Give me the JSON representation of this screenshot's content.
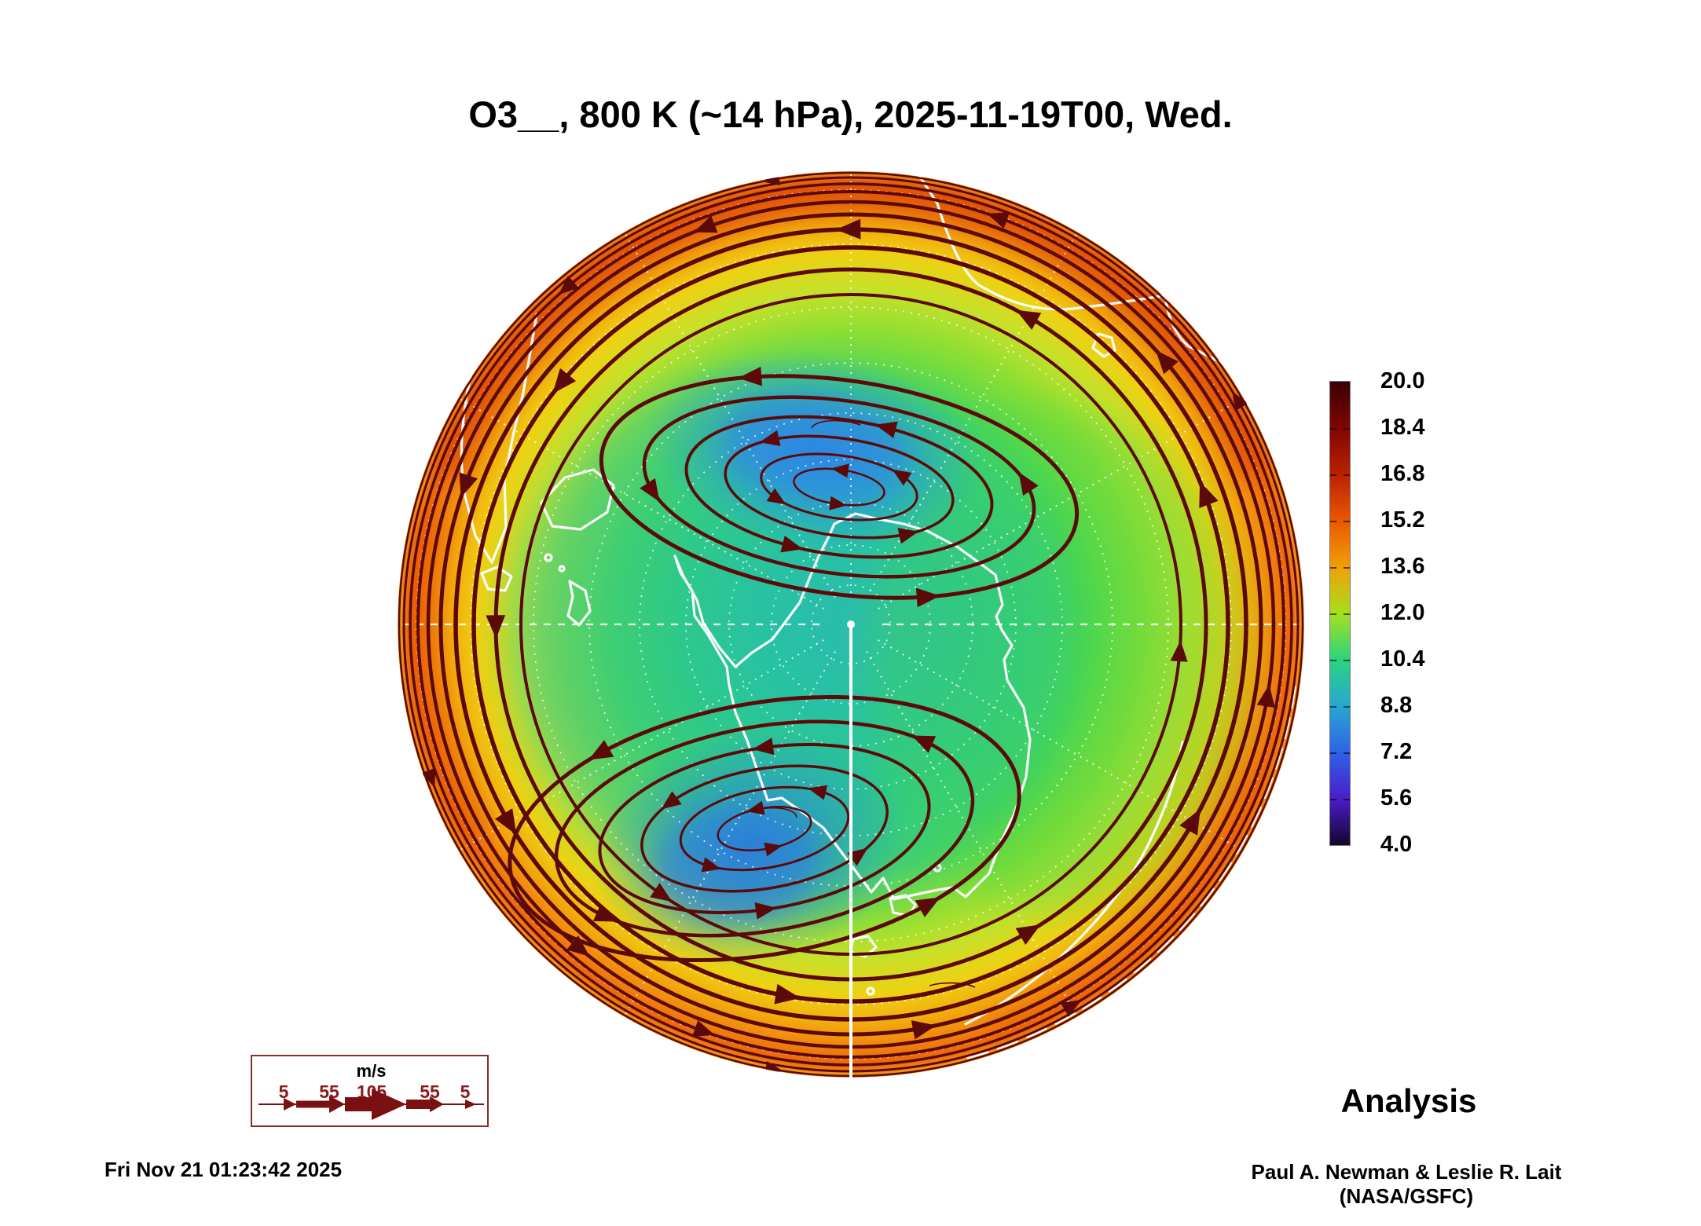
{
  "title": "O3__, 800 K (~14 hPa), 2025-11-19T00, Wed.",
  "colorbar": {
    "ticks": [
      "20.0",
      "18.4",
      "16.8",
      "15.2",
      "13.6",
      "12.0",
      "10.4",
      "8.8",
      "7.2",
      "5.6",
      "4.0"
    ],
    "gradient": [
      "#3a0008",
      "#800500",
      "#bb2100",
      "#e95800",
      "#f0a006",
      "#a6e01e",
      "#2ad47f",
      "#27a8cf",
      "#2f62e8",
      "#4b1cc8",
      "#15042e"
    ]
  },
  "wind_legend": {
    "unit": "m/s",
    "values": [
      "5",
      "55",
      "105",
      "55",
      "5"
    ]
  },
  "analysis_label": "Analysis",
  "timestamp": "Fri Nov 21 01:23:42 2025",
  "credit": "Paul A. Newman & Leslie R. Lait (NASA/GSFC)",
  "colors": {
    "streamline": "#5c0909",
    "coastline": "#ffffff",
    "graticule": "#ffffff",
    "legend_border": "#8b2a2a",
    "legend_text": "#8b1a1a",
    "rim_high": "#e95800",
    "vortex_low": "#2f7bdc"
  },
  "chart_data": {
    "type": "heatmap",
    "projection": "south polar stereographic (Antarctica centered)",
    "field": "O3 at 800 K (~14 hPa)",
    "valid_time": "2025-11-19T00",
    "title": "O3__, 800 K (~14 hPa), 2025-11-19T00, Wed.",
    "colorbar_ticks": [
      20.0,
      18.4,
      16.8,
      15.2,
      13.6,
      12.0,
      10.4,
      8.8,
      7.2,
      5.6,
      4.0
    ],
    "colorbar_range": [
      4.0,
      20.0
    ],
    "colorbar_tick_step": 1.6,
    "overlays": [
      "wind streamlines with arrowheads",
      "white coastlines",
      "dotted lat/lon graticule"
    ],
    "wind_speed_legend_ms": [
      5,
      55,
      105,
      55,
      5
    ],
    "region_estimates": [
      {
        "area": "upper polar-vortex lobe (blue, north of pole)",
        "value": 7.5
      },
      {
        "area": "lower polar-vortex lobe (blue, south of pole)",
        "value": 7.5
      },
      {
        "area": "teal ring around vortex",
        "value": 10
      },
      {
        "area": "green mid-latitude ring",
        "value": 12
      },
      {
        "area": "yellow-green band",
        "value": 13.5
      },
      {
        "area": "orange outer rim",
        "value": 15.5
      },
      {
        "area": "dark red patches at top/left/lower-right rim",
        "value": 17.5
      }
    ],
    "legend_position": "colorbar right, wind-speed key lower-left",
    "source_label": "Analysis"
  }
}
